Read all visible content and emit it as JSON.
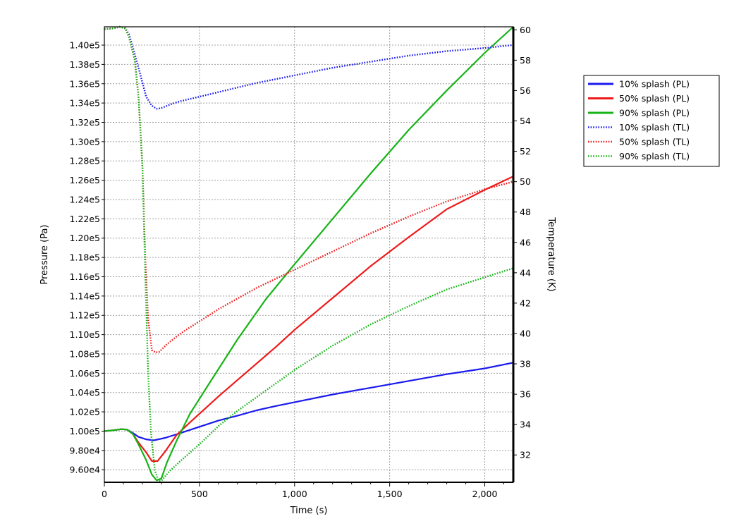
{
  "chart_data": {
    "type": "line",
    "xlabel": "Time (s)",
    "ylabel": "Pressure (Pa)",
    "y2label": "Temperature (K)",
    "xlim": [
      0,
      2150
    ],
    "ylim": [
      94700,
      141900
    ],
    "y2lim": [
      30.2,
      60.2
    ],
    "grid": true,
    "legend_position": "right",
    "x_ticks": [
      {
        "value": 0,
        "label": "0"
      },
      {
        "value": 500,
        "label": "500"
      },
      {
        "value": 1000,
        "label": "1,000"
      },
      {
        "value": 1500,
        "label": "1,500"
      },
      {
        "value": 2000,
        "label": "2,000"
      }
    ],
    "y_ticks": [
      {
        "value": 96000,
        "label": "9.60e4"
      },
      {
        "value": 98000,
        "label": "9.80e4"
      },
      {
        "value": 100000,
        "label": "1.00e5"
      },
      {
        "value": 102000,
        "label": "1.02e5"
      },
      {
        "value": 104000,
        "label": "1.04e5"
      },
      {
        "value": 106000,
        "label": "1.06e5"
      },
      {
        "value": 108000,
        "label": "1.08e5"
      },
      {
        "value": 110000,
        "label": "1.10e5"
      },
      {
        "value": 112000,
        "label": "1.12e5"
      },
      {
        "value": 114000,
        "label": "1.14e5"
      },
      {
        "value": 116000,
        "label": "1.16e5"
      },
      {
        "value": 118000,
        "label": "1.18e5"
      },
      {
        "value": 120000,
        "label": "1.20e5"
      },
      {
        "value": 122000,
        "label": "1.22e5"
      },
      {
        "value": 124000,
        "label": "1.24e5"
      },
      {
        "value": 126000,
        "label": "1.26e5"
      },
      {
        "value": 128000,
        "label": "1.28e5"
      },
      {
        "value": 130000,
        "label": "1.30e5"
      },
      {
        "value": 132000,
        "label": "1.32e5"
      },
      {
        "value": 134000,
        "label": "1.34e5"
      },
      {
        "value": 136000,
        "label": "1.36e5"
      },
      {
        "value": 138000,
        "label": "1.38e5"
      },
      {
        "value": 140000,
        "label": "1.40e5"
      }
    ],
    "y2_ticks": [
      {
        "value": 32,
        "label": "32"
      },
      {
        "value": 34,
        "label": "34"
      },
      {
        "value": 36,
        "label": "36"
      },
      {
        "value": 38,
        "label": "38"
      },
      {
        "value": 40,
        "label": "40"
      },
      {
        "value": 42,
        "label": "42"
      },
      {
        "value": 44,
        "label": "44"
      },
      {
        "value": 46,
        "label": "46"
      },
      {
        "value": 48,
        "label": "48"
      },
      {
        "value": 50,
        "label": "50"
      },
      {
        "value": 52,
        "label": "52"
      },
      {
        "value": 54,
        "label": "54"
      },
      {
        "value": 56,
        "label": "56"
      },
      {
        "value": 58,
        "label": "58"
      },
      {
        "value": 60,
        "label": "60"
      }
    ],
    "series": [
      {
        "name": "10% splash (PL)",
        "axis": "left",
        "color": "#1a1aee",
        "style": "solid",
        "points": [
          [
            0,
            100000
          ],
          [
            50,
            100100
          ],
          [
            90,
            100200
          ],
          [
            120,
            100150
          ],
          [
            150,
            99800
          ],
          [
            180,
            99400
          ],
          [
            220,
            99150
          ],
          [
            260,
            99050
          ],
          [
            320,
            99300
          ],
          [
            400,
            99800
          ],
          [
            500,
            100450
          ],
          [
            600,
            101100
          ],
          [
            700,
            101600
          ],
          [
            800,
            102150
          ],
          [
            900,
            102600
          ],
          [
            1000,
            103000
          ],
          [
            1200,
            103800
          ],
          [
            1400,
            104500
          ],
          [
            1600,
            105200
          ],
          [
            1800,
            105900
          ],
          [
            2000,
            106500
          ],
          [
            2150,
            107100
          ]
        ]
      },
      {
        "name": "50% splash (PL)",
        "axis": "left",
        "color": "#ee1a1a",
        "style": "solid",
        "points": [
          [
            0,
            100000
          ],
          [
            50,
            100100
          ],
          [
            90,
            100200
          ],
          [
            120,
            100150
          ],
          [
            150,
            99700
          ],
          [
            180,
            98800
          ],
          [
            220,
            97800
          ],
          [
            250,
            96900
          ],
          [
            280,
            96900
          ],
          [
            320,
            97900
          ],
          [
            380,
            99600
          ],
          [
            450,
            100900
          ],
          [
            500,
            101800
          ],
          [
            600,
            103600
          ],
          [
            700,
            105300
          ],
          [
            800,
            107000
          ],
          [
            900,
            108700
          ],
          [
            1000,
            110500
          ],
          [
            1200,
            113800
          ],
          [
            1400,
            117100
          ],
          [
            1600,
            120100
          ],
          [
            1800,
            123000
          ],
          [
            2000,
            125000
          ],
          [
            2150,
            126400
          ]
        ]
      },
      {
        "name": "90% splash (PL)",
        "axis": "left",
        "color": "#16b316",
        "style": "solid",
        "points": [
          [
            0,
            100000
          ],
          [
            50,
            100100
          ],
          [
            90,
            100200
          ],
          [
            120,
            100150
          ],
          [
            150,
            99700
          ],
          [
            180,
            98600
          ],
          [
            220,
            97000
          ],
          [
            250,
            95500
          ],
          [
            275,
            94900
          ],
          [
            300,
            95100
          ],
          [
            330,
            96800
          ],
          [
            380,
            99000
          ],
          [
            450,
            101800
          ],
          [
            550,
            104900
          ],
          [
            700,
            109500
          ],
          [
            850,
            113700
          ],
          [
            1000,
            117300
          ],
          [
            1200,
            122000
          ],
          [
            1400,
            126700
          ],
          [
            1600,
            131200
          ],
          [
            1800,
            135300
          ],
          [
            2000,
            139200
          ],
          [
            2150,
            141900
          ]
        ]
      },
      {
        "name": "10% splash (TL)",
        "axis": "right",
        "color": "#1a1aee",
        "style": "dotted",
        "points": [
          [
            0,
            60.05
          ],
          [
            50,
            60.1
          ],
          [
            80,
            60.2
          ],
          [
            110,
            60.1
          ],
          [
            130,
            59.7
          ],
          [
            160,
            58.4
          ],
          [
            190,
            57.0
          ],
          [
            220,
            55.6
          ],
          [
            250,
            55.0
          ],
          [
            275,
            54.8
          ],
          [
            300,
            54.85
          ],
          [
            350,
            55.1
          ],
          [
            400,
            55.3
          ],
          [
            500,
            55.6
          ],
          [
            600,
            55.9
          ],
          [
            700,
            56.2
          ],
          [
            800,
            56.5
          ],
          [
            1000,
            57.0
          ],
          [
            1200,
            57.5
          ],
          [
            1400,
            57.9
          ],
          [
            1600,
            58.3
          ],
          [
            1800,
            58.6
          ],
          [
            2000,
            58.8
          ],
          [
            2150,
            59.0
          ]
        ]
      },
      {
        "name": "50% splash (TL)",
        "axis": "right",
        "color": "#ee1a1a",
        "style": "dotted",
        "points": [
          [
            0,
            60.05
          ],
          [
            50,
            60.1
          ],
          [
            80,
            60.2
          ],
          [
            110,
            60.1
          ],
          [
            130,
            59.5
          ],
          [
            160,
            58.0
          ],
          [
            180,
            55.5
          ],
          [
            200,
            51.0
          ],
          [
            215,
            45.0
          ],
          [
            230,
            41.0
          ],
          [
            250,
            38.9
          ],
          [
            270,
            38.75
          ],
          [
            290,
            38.8
          ],
          [
            330,
            39.3
          ],
          [
            400,
            40.0
          ],
          [
            500,
            40.8
          ],
          [
            600,
            41.6
          ],
          [
            700,
            42.3
          ],
          [
            800,
            43.0
          ],
          [
            900,
            43.6
          ],
          [
            1000,
            44.2
          ],
          [
            1200,
            45.4
          ],
          [
            1400,
            46.6
          ],
          [
            1600,
            47.7
          ],
          [
            1800,
            48.7
          ],
          [
            2000,
            49.5
          ],
          [
            2150,
            50.0
          ]
        ]
      },
      {
        "name": "90% splash (TL)",
        "axis": "right",
        "color": "#16b316",
        "style": "dotted",
        "points": [
          [
            0,
            60.05
          ],
          [
            50,
            60.1
          ],
          [
            80,
            60.2
          ],
          [
            110,
            60.1
          ],
          [
            130,
            59.5
          ],
          [
            160,
            58.0
          ],
          [
            180,
            55.5
          ],
          [
            200,
            51.0
          ],
          [
            215,
            44.0
          ],
          [
            230,
            37.5
          ],
          [
            245,
            33.5
          ],
          [
            265,
            31.0
          ],
          [
            285,
            30.3
          ],
          [
            300,
            30.3
          ],
          [
            340,
            30.9
          ],
          [
            400,
            31.6
          ],
          [
            500,
            32.7
          ],
          [
            600,
            33.9
          ],
          [
            700,
            34.9
          ],
          [
            800,
            35.8
          ],
          [
            900,
            36.7
          ],
          [
            1000,
            37.6
          ],
          [
            1200,
            39.2
          ],
          [
            1400,
            40.6
          ],
          [
            1600,
            41.8
          ],
          [
            1800,
            42.9
          ],
          [
            2000,
            43.7
          ],
          [
            2150,
            44.3
          ]
        ]
      }
    ]
  }
}
